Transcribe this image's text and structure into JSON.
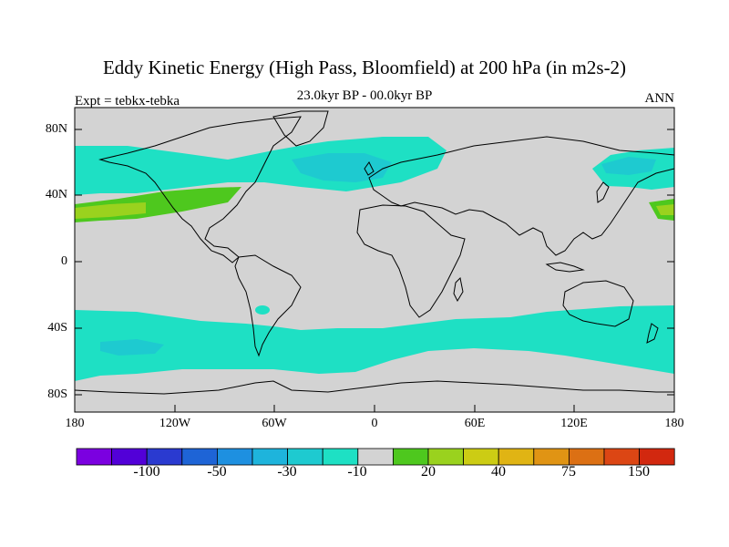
{
  "header": {
    "title": "Eddy Kinetic Energy (High Pass, Bloomfield) at 200 hPa (in m2s-2)",
    "subtitle": "23.0kyr BP - 00.0kyr BP",
    "left_string": "Expt = tebkx-tebka",
    "right_string": "ANN"
  },
  "map": {
    "projection": "cylindrical-equidistant",
    "background_color": "#d3d3d3",
    "coastline_color": "#000000",
    "lat_labels": [
      "80N",
      "40N",
      "0",
      "40S",
      "80S"
    ],
    "lon_labels": [
      "180",
      "120W",
      "60W",
      "0",
      "60E",
      "120E",
      "180"
    ]
  },
  "colorbar": {
    "colors": [
      "#7b00e0",
      "#5200d8",
      "#2a3ad0",
      "#1e64d6",
      "#1e90e0",
      "#1eb4dc",
      "#1ecad0",
      "#1ee0c4",
      "#d3d3d3",
      "#4ec81e",
      "#9ad21e",
      "#cccc14",
      "#e0b414",
      "#e09414",
      "#dc7014",
      "#dc4614",
      "#d2280f"
    ],
    "labels": [
      "-100",
      "-50",
      "-30",
      "-10",
      "20",
      "40",
      "75",
      "150"
    ]
  }
}
